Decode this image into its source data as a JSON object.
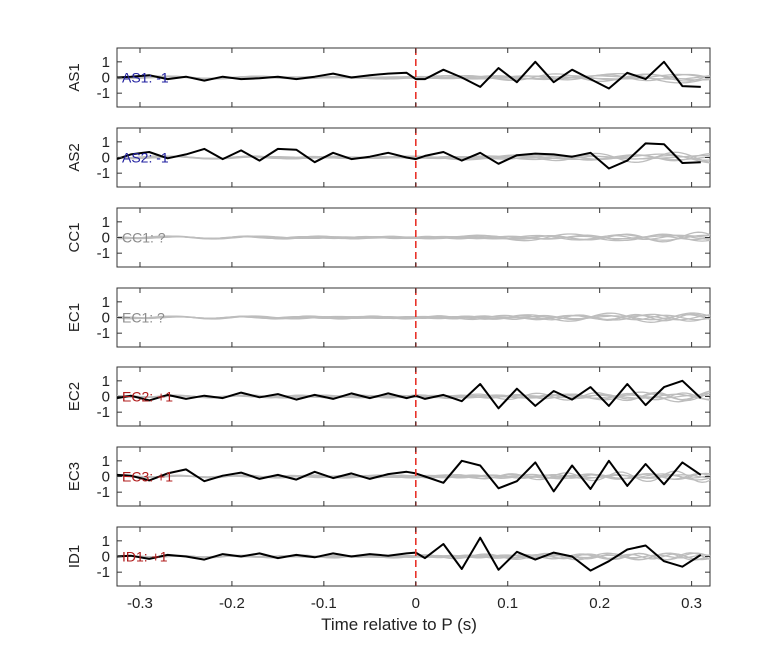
{
  "chart_data": {
    "type": "line",
    "xlabel": "Time relative to P (s)",
    "xlim": [
      -0.325,
      0.32
    ],
    "x_ticks": [
      "-0.3",
      "-0.2",
      "-0.1",
      "0",
      "0.1",
      "0.2",
      "0.3"
    ],
    "x_tick_values": [
      -0.3,
      -0.2,
      -0.1,
      0,
      0.1,
      0.2,
      0.3
    ],
    "ylim": [
      -1.5,
      1.5
    ],
    "y_ticks": [
      "1",
      "0",
      "-1"
    ],
    "y_tick_values": [
      1,
      0,
      -1
    ],
    "marker_time": 0,
    "colors": {
      "main_trace": "#000000",
      "background_traces": "#bdbdbd",
      "marker_line": "#e8332a",
      "negative_label": "#1f1fa0",
      "unknown_label": "#8c8c8c",
      "positive_label": "#b01c1c"
    },
    "panels": [
      {
        "ylabel": "AS1",
        "annotation": "AS1: -1",
        "polarity": "negative",
        "has_main_trace": true,
        "main_trace": {
          "x": [
            -0.325,
            -0.31,
            -0.29,
            -0.27,
            -0.25,
            -0.23,
            -0.21,
            -0.19,
            -0.17,
            -0.15,
            -0.13,
            -0.11,
            -0.09,
            -0.07,
            -0.05,
            -0.03,
            -0.01,
            0.0,
            0.01,
            0.03,
            0.05,
            0.07,
            0.09,
            0.11,
            0.13,
            0.15,
            0.17,
            0.19,
            0.21,
            0.23,
            0.25,
            0.27,
            0.29,
            0.31
          ],
          "y": [
            0.0,
            0.05,
            0.15,
            -0.1,
            0.05,
            -0.2,
            0.05,
            -0.1,
            -0.05,
            0.05,
            -0.1,
            0.05,
            0.25,
            0.0,
            0.15,
            0.25,
            0.3,
            -0.1,
            -0.1,
            0.5,
            0.0,
            -0.6,
            0.6,
            -0.3,
            1.0,
            -0.3,
            0.5,
            -0.1,
            -0.7,
            0.3,
            -0.1,
            1.0,
            -0.55,
            -0.6
          ]
        }
      },
      {
        "ylabel": "AS2",
        "annotation": "AS2: -1",
        "polarity": "negative",
        "has_main_trace": true,
        "main_trace": {
          "x": [
            -0.325,
            -0.31,
            -0.29,
            -0.27,
            -0.25,
            -0.23,
            -0.21,
            -0.19,
            -0.17,
            -0.15,
            -0.13,
            -0.11,
            -0.09,
            -0.07,
            -0.05,
            -0.03,
            -0.01,
            0.0,
            0.01,
            0.03,
            0.05,
            0.07,
            0.09,
            0.11,
            0.13,
            0.15,
            0.17,
            0.19,
            0.21,
            0.23,
            0.25,
            0.27,
            0.29,
            0.31
          ],
          "y": [
            -0.1,
            0.2,
            0.35,
            -0.05,
            0.2,
            0.55,
            -0.1,
            0.45,
            -0.2,
            0.55,
            0.5,
            -0.3,
            0.3,
            -0.1,
            0.05,
            0.3,
            0.0,
            -0.1,
            0.1,
            0.35,
            -0.2,
            0.3,
            -0.4,
            0.15,
            0.25,
            0.2,
            0.05,
            0.3,
            -0.7,
            -0.2,
            0.9,
            0.85,
            -0.35,
            -0.3
          ]
        }
      },
      {
        "ylabel": "CC1",
        "annotation": "CC1: ?",
        "polarity": "unknown",
        "has_main_trace": false
      },
      {
        "ylabel": "EC1",
        "annotation": "EC1: ?",
        "polarity": "unknown",
        "has_main_trace": false
      },
      {
        "ylabel": "EC2",
        "annotation": "EC2: +1",
        "polarity": "positive",
        "has_main_trace": true,
        "main_trace": {
          "x": [
            -0.325,
            -0.31,
            -0.29,
            -0.27,
            -0.25,
            -0.23,
            -0.21,
            -0.19,
            -0.17,
            -0.15,
            -0.13,
            -0.11,
            -0.09,
            -0.07,
            -0.05,
            -0.03,
            -0.01,
            0.0,
            0.01,
            0.03,
            0.05,
            0.07,
            0.09,
            0.11,
            0.13,
            0.15,
            0.17,
            0.19,
            0.21,
            0.23,
            0.25,
            0.27,
            0.29,
            0.31
          ],
          "y": [
            -0.1,
            0.05,
            -0.25,
            0.1,
            -0.15,
            0.05,
            -0.1,
            0.25,
            -0.05,
            0.15,
            -0.2,
            0.1,
            -0.15,
            0.2,
            -0.1,
            0.2,
            -0.1,
            0.05,
            -0.15,
            0.1,
            -0.3,
            0.8,
            -0.75,
            0.5,
            -0.6,
            0.35,
            -0.2,
            0.6,
            -0.6,
            0.8,
            -0.55,
            0.6,
            1.0,
            -0.1
          ]
        }
      },
      {
        "ylabel": "EC3",
        "annotation": "EC3: +1",
        "polarity": "positive",
        "has_main_trace": true,
        "main_trace": {
          "x": [
            -0.325,
            -0.31,
            -0.29,
            -0.27,
            -0.25,
            -0.23,
            -0.21,
            -0.19,
            -0.17,
            -0.15,
            -0.13,
            -0.11,
            -0.09,
            -0.07,
            -0.05,
            -0.03,
            -0.01,
            0.0,
            0.01,
            0.03,
            0.05,
            0.07,
            0.09,
            0.11,
            0.13,
            0.15,
            0.17,
            0.19,
            0.21,
            0.23,
            0.25,
            0.27,
            0.29,
            0.31
          ],
          "y": [
            0.1,
            0.05,
            -0.25,
            0.2,
            0.45,
            -0.3,
            0.05,
            0.25,
            -0.15,
            0.1,
            -0.2,
            0.3,
            -0.1,
            0.2,
            -0.15,
            0.15,
            0.3,
            0.2,
            0.0,
            -0.4,
            1.0,
            0.7,
            -0.75,
            -0.3,
            0.9,
            -0.95,
            0.7,
            -0.8,
            1.0,
            -0.6,
            0.8,
            -0.5,
            0.9,
            0.1
          ]
        }
      },
      {
        "ylabel": "ID1",
        "annotation": "ID1: +1",
        "polarity": "positive",
        "has_main_trace": true,
        "main_trace": {
          "x": [
            -0.325,
            -0.31,
            -0.29,
            -0.27,
            -0.25,
            -0.23,
            -0.21,
            -0.19,
            -0.17,
            -0.15,
            -0.13,
            -0.11,
            -0.09,
            -0.07,
            -0.05,
            -0.03,
            -0.01,
            0.0,
            0.01,
            0.03,
            0.05,
            0.07,
            0.09,
            0.11,
            0.13,
            0.15,
            0.17,
            0.19,
            0.21,
            0.23,
            0.25,
            0.27,
            0.29,
            0.31
          ],
          "y": [
            0.0,
            0.05,
            -0.15,
            0.1,
            0.0,
            -0.2,
            0.15,
            0.0,
            0.2,
            -0.1,
            0.1,
            -0.05,
            0.2,
            0.0,
            0.15,
            0.05,
            0.2,
            0.25,
            -0.1,
            0.8,
            -0.8,
            1.2,
            -0.85,
            0.3,
            -0.2,
            0.25,
            0.0,
            -0.9,
            -0.3,
            0.45,
            0.7,
            -0.3,
            -0.65,
            0.1
          ]
        }
      }
    ]
  }
}
